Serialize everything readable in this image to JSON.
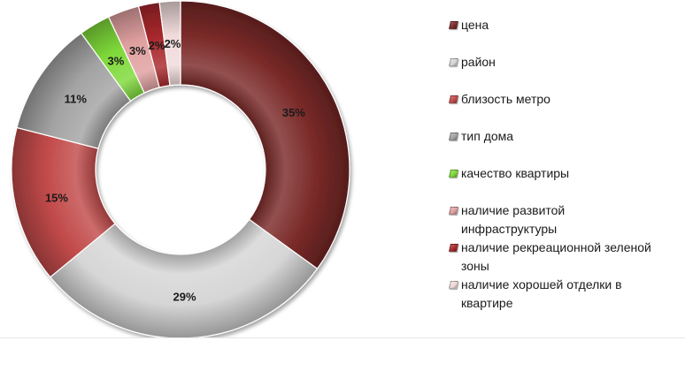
{
  "chart_data": {
    "type": "pie",
    "variant": "doughnut",
    "categories": [
      "цена",
      "район",
      "близость метро",
      "тип дома",
      "качество квартиры",
      "наличие развитой инфраструктуры",
      "наличие рекреационной зеленой зоны",
      "наличие хорошей отделки в квартире"
    ],
    "values": [
      35,
      29,
      15,
      11,
      3,
      3,
      2,
      2
    ],
    "unit": "%",
    "data_labels": [
      "35%",
      "29%",
      "15%",
      "11%",
      "3%",
      "3%",
      "2%",
      "2%"
    ],
    "colors": [
      "#7a2a28",
      "#d6d6d6",
      "#c24a4a",
      "#a3a3a3",
      "#7fd93a",
      "#e0a0a0",
      "#a8282c",
      "#f0dada"
    ],
    "legend_position": "right",
    "legend_labels_wrapped": [
      [
        "цена"
      ],
      [
        "район"
      ],
      [
        "близость метро"
      ],
      [
        "тип дома"
      ],
      [
        "качество квартиры"
      ],
      [
        "наличие развитой",
        "инфраструктуры"
      ],
      [
        "наличие рекреационной зеленой",
        "зоны"
      ],
      [
        "наличие хорошей отделки в",
        "квартире"
      ]
    ]
  }
}
